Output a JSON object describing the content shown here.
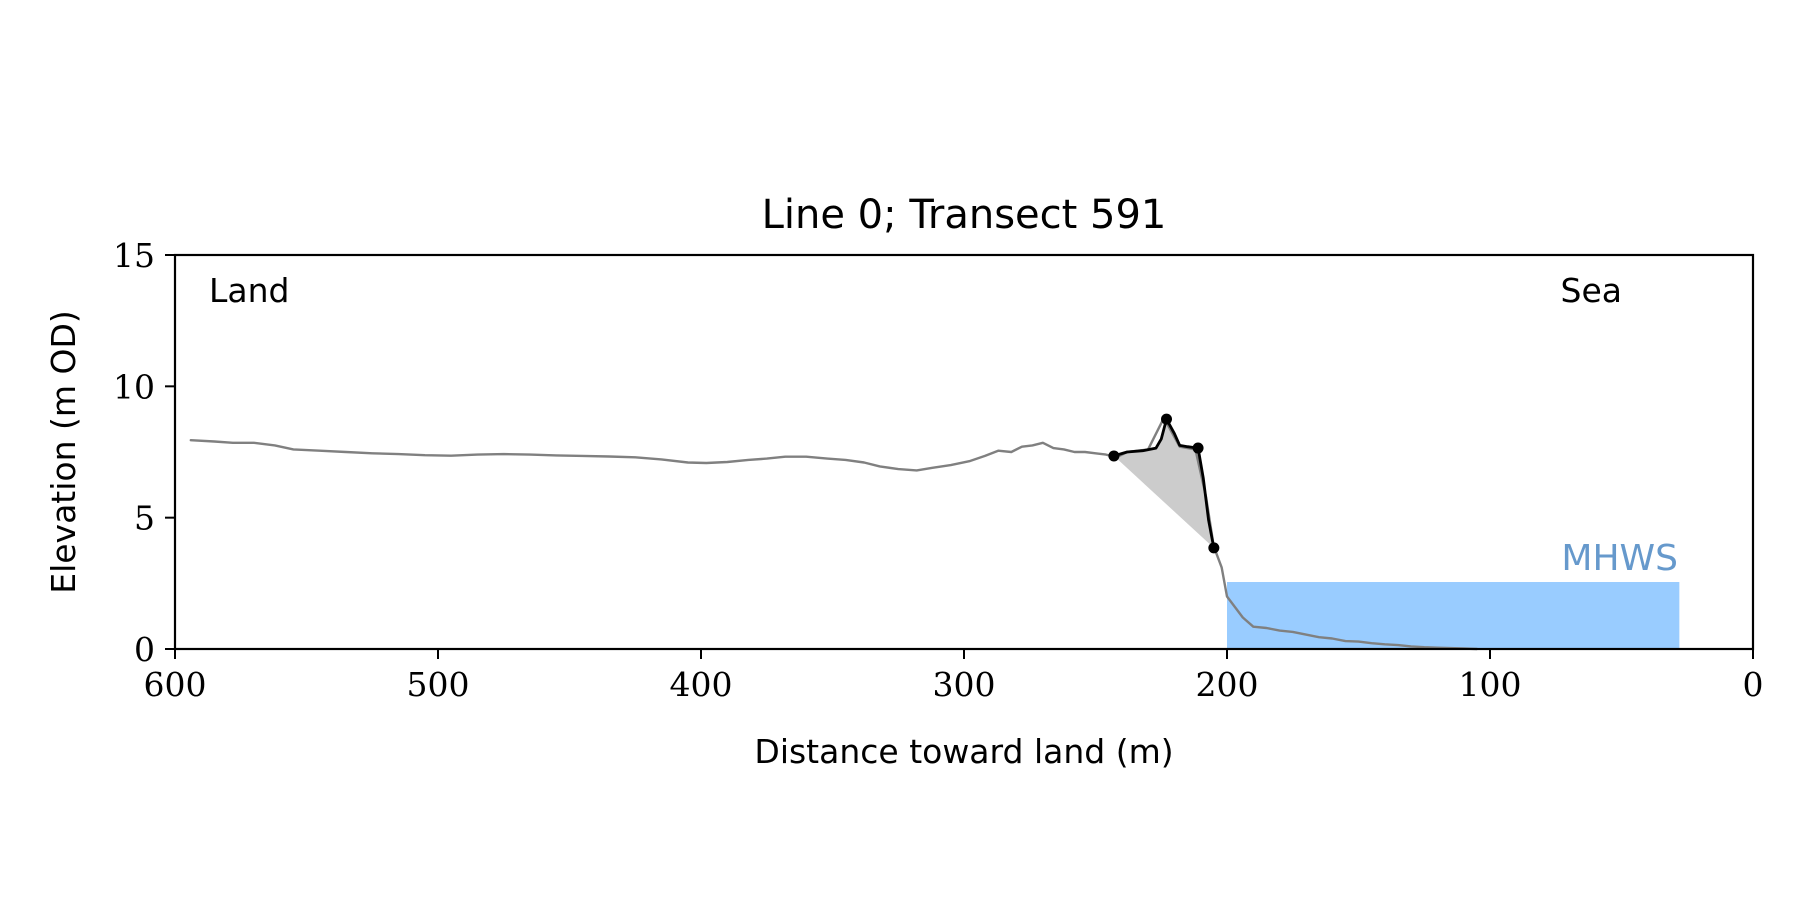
{
  "chart_data": {
    "type": "line",
    "title": "Line 0; Transect 591",
    "xlabel": "Distance toward land (m)",
    "ylabel": "Elevation (m OD)",
    "xlim": [
      600,
      0
    ],
    "ylim": [
      0,
      15
    ],
    "xticks": [
      600,
      500,
      400,
      300,
      200,
      100,
      0
    ],
    "yticks": [
      0,
      5,
      10,
      15
    ],
    "grid": false,
    "annotations": {
      "land": "Land",
      "sea": "Sea",
      "mhws": "MHWS"
    },
    "mhws": {
      "label": "MHWS",
      "elevation": 2.55,
      "x_from": 200,
      "x_to": 28,
      "color": "#99ccff",
      "label_color": "#6699cc"
    },
    "series": [
      {
        "role": "profile",
        "color": "#808080",
        "x": [
          594,
          585,
          578,
          570,
          562,
          555,
          545,
          535,
          525,
          515,
          505,
          495,
          485,
          475,
          465,
          455,
          445,
          435,
          425,
          415,
          405,
          398,
          390,
          382,
          375,
          368,
          360,
          352,
          345,
          338,
          332,
          325,
          318,
          312,
          305,
          298,
          292,
          287,
          282,
          278,
          274,
          270,
          266,
          262,
          258,
          254,
          250,
          246,
          242,
          238,
          230,
          224,
          218,
          212,
          208,
          205,
          202,
          200,
          197,
          194,
          190,
          185,
          180,
          175,
          170,
          165,
          160,
          155,
          150,
          145,
          140,
          135,
          130,
          125,
          120,
          110,
          105
        ],
        "y": [
          7.95,
          7.9,
          7.85,
          7.85,
          7.75,
          7.6,
          7.55,
          7.5,
          7.45,
          7.42,
          7.38,
          7.36,
          7.4,
          7.42,
          7.4,
          7.37,
          7.35,
          7.33,
          7.3,
          7.22,
          7.1,
          7.08,
          7.12,
          7.2,
          7.25,
          7.32,
          7.32,
          7.25,
          7.2,
          7.1,
          6.95,
          6.85,
          6.8,
          6.9,
          7.0,
          7.15,
          7.35,
          7.55,
          7.5,
          7.7,
          7.75,
          7.85,
          7.65,
          7.6,
          7.5,
          7.5,
          7.45,
          7.4,
          7.3,
          7.5,
          7.6,
          8.8,
          7.7,
          7.6,
          5.8,
          3.9,
          3.1,
          2.0,
          1.6,
          1.2,
          0.85,
          0.8,
          0.7,
          0.65,
          0.55,
          0.45,
          0.4,
          0.3,
          0.28,
          0.22,
          0.18,
          0.15,
          0.1,
          0.07,
          0.05,
          0.02,
          0.0
        ]
      },
      {
        "role": "highlight",
        "color": "#000000",
        "x": [
          243,
          238,
          232,
          227,
          225,
          223,
          220,
          218,
          215,
          211,
          209,
          207,
          205
        ],
        "y": [
          7.35,
          7.5,
          7.55,
          7.65,
          8.0,
          8.75,
          8.2,
          7.75,
          7.7,
          7.65,
          6.5,
          4.9,
          3.85
        ]
      }
    ],
    "key_points": {
      "x": [
        243,
        223,
        211,
        205
      ],
      "y": [
        7.35,
        8.75,
        7.65,
        3.85
      ]
    },
    "shaded_area_color": "#cccccc"
  }
}
